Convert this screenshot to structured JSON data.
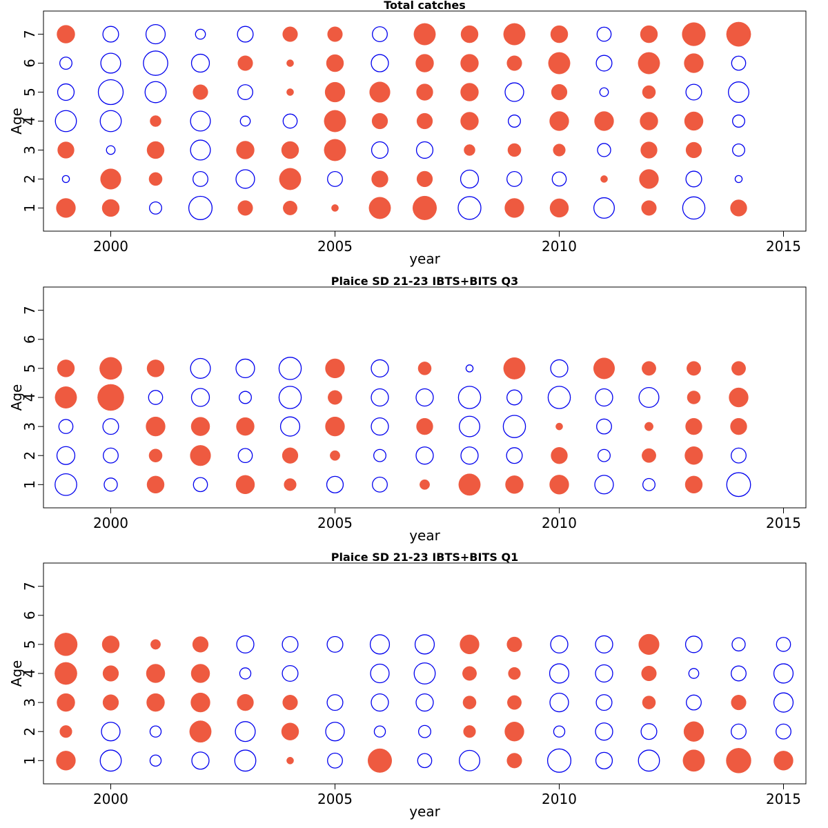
{
  "colors": {
    "positive": "#ee5a40",
    "negative": "#0000ee"
  },
  "chart_data": [
    {
      "type": "scatter",
      "subtype": "bubble",
      "title": "Total catches",
      "xlabel": "year",
      "ylabel": "Age",
      "xlim": [
        1998.5,
        2015.5
      ],
      "ylim": [
        0.2,
        7.8
      ],
      "xticks": [
        2000,
        2005,
        2010,
        2015
      ],
      "yticks": [
        1,
        2,
        3,
        4,
        5,
        6,
        7
      ],
      "years": [
        1999,
        2000,
        2001,
        2002,
        2003,
        2004,
        2005,
        2006,
        2007,
        2008,
        2009,
        2010,
        2011,
        2012,
        2013,
        2014
      ],
      "ages": [
        1,
        2,
        3,
        4,
        5,
        6,
        7
      ],
      "residuals": [
        [
          0.75,
          -0.1,
          0.55,
          -0.9,
          -0.55,
          -0.3,
          0.65
        ],
        [
          0.6,
          0.85,
          -0.15,
          -0.9,
          -1.25,
          -0.8,
          -0.5
        ],
        [
          -0.3,
          0.35,
          0.6,
          0.25,
          -0.9,
          -1.2,
          -0.75
        ],
        [
          -1.1,
          -0.45,
          -0.8,
          -0.8,
          0.45,
          -0.65,
          -0.2
        ],
        [
          0.45,
          -0.7,
          0.65,
          -0.2,
          -0.45,
          0.45,
          -0.5
        ],
        [
          0.4,
          0.95,
          0.6,
          -0.4,
          0.1,
          0.1,
          0.45
        ],
        [
          0.1,
          -0.45,
          0.95,
          0.95,
          0.8,
          0.6,
          0.45
        ],
        [
          0.95,
          0.55,
          -0.55,
          0.5,
          0.85,
          -0.6,
          -0.45
        ],
        [
          1.15,
          0.5,
          -0.55,
          0.5,
          0.55,
          0.65,
          0.95
        ],
        [
          -1.05,
          -0.65,
          0.25,
          0.65,
          0.65,
          0.65,
          0.6
        ],
        [
          0.75,
          -0.45,
          0.35,
          -0.3,
          -0.7,
          0.45,
          0.95
        ],
        [
          0.7,
          -0.4,
          0.3,
          0.75,
          0.5,
          0.95,
          0.6
        ],
        [
          -0.85,
          0.1,
          -0.35,
          0.75,
          -0.15,
          -0.5,
          -0.4
        ],
        [
          0.45,
          0.75,
          0.55,
          0.65,
          0.35,
          0.95,
          0.6
        ],
        [
          -1.0,
          -0.5,
          0.5,
          0.7,
          -0.5,
          0.75,
          1.1
        ],
        [
          0.55,
          -0.1,
          -0.3,
          -0.3,
          -0.85,
          -0.4,
          1.2
        ]
      ]
    },
    {
      "type": "scatter",
      "subtype": "bubble",
      "title": "Plaice SD 21-23 IBTS+BITS Q3",
      "xlabel": "year",
      "ylabel": "Age",
      "xlim": [
        1998.5,
        2015.5
      ],
      "ylim": [
        0.2,
        7.8
      ],
      "xticks": [
        2000,
        2005,
        2010,
        2015
      ],
      "yticks": [
        1,
        2,
        3,
        4,
        5,
        6,
        7
      ],
      "years": [
        1999,
        2000,
        2001,
        2002,
        2003,
        2004,
        2005,
        2006,
        2007,
        2008,
        2009,
        2010,
        2011,
        2012,
        2013,
        2014
      ],
      "ages": [
        1,
        2,
        3,
        4,
        5
      ],
      "residuals": [
        [
          -0.95,
          -0.65,
          -0.4,
          0.95,
          0.6
        ],
        [
          -0.35,
          -0.45,
          -0.5,
          1.4,
          1.0
        ],
        [
          0.6,
          0.35,
          0.75,
          -0.4,
          0.6
        ],
        [
          -0.4,
          0.85,
          0.7,
          -0.65,
          -0.8
        ],
        [
          0.7,
          -0.4,
          0.65,
          -0.3,
          -0.7
        ],
        [
          0.3,
          0.5,
          -0.75,
          -1.0,
          -1.0
        ],
        [
          -0.55,
          0.2,
          0.75,
          0.4,
          0.75
        ],
        [
          -0.45,
          -0.3,
          -0.6,
          -0.6,
          -0.6
        ],
        [
          0.2,
          -0.6,
          0.55,
          -0.6,
          0.35
        ],
        [
          0.95,
          -0.6,
          -0.85,
          -1.0,
          -0.1
        ],
        [
          0.65,
          -0.5,
          -1.0,
          -0.45,
          0.95
        ],
        [
          0.75,
          0.55,
          0.1,
          -1.0,
          -0.6
        ],
        [
          -0.7,
          -0.3,
          -0.45,
          -0.6,
          0.9
        ],
        [
          -0.3,
          0.4,
          0.15,
          -0.8,
          0.4
        ],
        [
          0.6,
          0.65,
          0.55,
          0.35,
          0.4
        ],
        [
          -1.15,
          -0.45,
          0.55,
          0.75,
          0.4
        ]
      ]
    },
    {
      "type": "scatter",
      "subtype": "bubble",
      "title": "Plaice SD 21-23 IBTS+BITS Q1",
      "xlabel": "year",
      "ylabel": "Age",
      "xlim": [
        1998.5,
        2015.5
      ],
      "ylim": [
        0.2,
        7.8
      ],
      "xticks": [
        2000,
        2005,
        2010,
        2015
      ],
      "yticks": [
        1,
        2,
        3,
        4,
        5,
        6,
        7
      ],
      "years": [
        1999,
        2000,
        2001,
        2002,
        2003,
        2004,
        2005,
        2006,
        2007,
        2008,
        2009,
        2010,
        2011,
        2012,
        2013,
        2014,
        2015
      ],
      "ages": [
        1,
        2,
        3,
        4,
        5
      ],
      "residuals": [
        [
          0.75,
          0.3,
          0.65,
          1.0,
          1.05
        ],
        [
          -0.9,
          -0.7,
          0.5,
          0.5,
          0.6
        ],
        [
          -0.25,
          -0.25,
          0.65,
          0.7,
          0.2
        ],
        [
          -0.6,
          0.95,
          0.75,
          0.7,
          0.5
        ],
        [
          -0.9,
          -0.8,
          0.55,
          -0.25,
          -0.6
        ],
        [
          0.1,
          0.6,
          0.45,
          -0.5,
          -0.5
        ],
        [
          -0.45,
          -0.7,
          -0.5,
          0.0,
          -0.5
        ],
        [
          1.15,
          -0.25,
          -0.6,
          -0.7,
          -0.75
        ],
        [
          -0.4,
          -0.3,
          -0.6,
          -0.9,
          -0.75
        ],
        [
          -0.85,
          0.3,
          0.35,
          0.4,
          0.75
        ],
        [
          0.45,
          0.75,
          0.4,
          0.3,
          0.45
        ],
        [
          -1.1,
          -0.25,
          -0.7,
          -0.75,
          -0.6
        ],
        [
          -0.55,
          -0.6,
          -0.5,
          -0.6,
          -0.6
        ],
        [
          -0.9,
          -0.5,
          0.35,
          0.45,
          0.85
        ],
        [
          0.95,
          0.8,
          -0.45,
          -0.2,
          -0.55
        ],
        [
          1.25,
          -0.45,
          0.45,
          -0.45,
          -0.35
        ],
        [
          0.75,
          -0.45,
          -0.75,
          -0.75,
          -0.4
        ]
      ]
    }
  ]
}
